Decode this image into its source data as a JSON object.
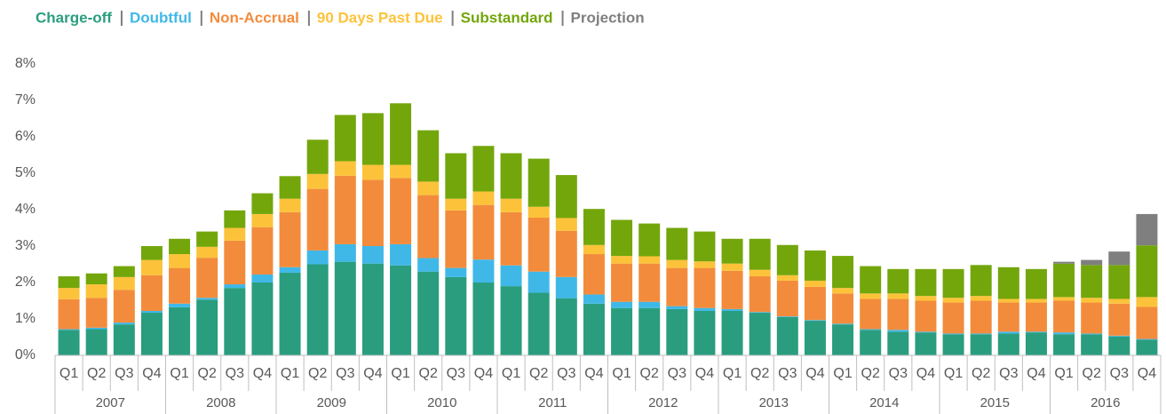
{
  "chart_data": {
    "type": "stacked_bar",
    "categories": [
      "Q1",
      "Q2",
      "Q3",
      "Q4",
      "Q1",
      "Q2",
      "Q3",
      "Q4",
      "Q1",
      "Q2",
      "Q3",
      "Q4",
      "Q1",
      "Q2",
      "Q3",
      "Q4",
      "Q1",
      "Q2",
      "Q3",
      "Q4",
      "Q1",
      "Q2",
      "Q3",
      "Q4",
      "Q1",
      "Q2",
      "Q3",
      "Q4",
      "Q1",
      "Q2",
      "Q3",
      "Q4",
      "Q1",
      "Q2",
      "Q3",
      "Q4",
      "Q1",
      "Q2",
      "Q3",
      "Q4"
    ],
    "groups": [
      "2007",
      "2008",
      "2009",
      "2010",
      "2011",
      "2012",
      "2013",
      "2014",
      "2015",
      "2016"
    ],
    "series": [
      {
        "name": "Charge-off",
        "color": "#2a9d7f",
        "values": [
          0.7,
          0.72,
          0.85,
          1.17,
          1.32,
          1.53,
          1.85,
          2.0,
          2.27,
          2.5,
          2.57,
          2.52,
          2.47,
          2.3,
          2.15,
          2.0,
          1.9,
          1.72,
          1.57,
          1.42,
          1.3,
          1.3,
          1.27,
          1.22,
          1.22,
          1.17,
          1.05,
          0.95,
          0.85,
          0.7,
          0.65,
          0.63,
          0.58,
          0.58,
          0.6,
          0.63,
          0.58,
          0.58,
          0.52,
          0.43
        ]
      },
      {
        "name": "Doubtful",
        "color": "#3fb8e8",
        "values": [
          0.02,
          0.04,
          0.05,
          0.05,
          0.1,
          0.05,
          0.1,
          0.22,
          0.15,
          0.38,
          0.48,
          0.48,
          0.58,
          0.37,
          0.25,
          0.63,
          0.57,
          0.58,
          0.58,
          0.25,
          0.17,
          0.17,
          0.08,
          0.08,
          0.05,
          0.02,
          0.02,
          0.02,
          0.02,
          0.02,
          0.05,
          0.02,
          0.02,
          0.02,
          0.05,
          0.02,
          0.05,
          0.02,
          0.02,
          0.02
        ]
      },
      {
        "name": "Non-Accrual",
        "color": "#f28c3c",
        "values": [
          0.82,
          0.82,
          0.9,
          0.98,
          0.98,
          1.1,
          1.2,
          1.3,
          1.51,
          1.69,
          1.88,
          1.82,
          1.82,
          1.73,
          1.58,
          1.5,
          1.46,
          1.48,
          1.27,
          1.11,
          1.05,
          1.05,
          1.05,
          1.1,
          1.05,
          0.98,
          0.98,
          0.91,
          0.83,
          0.83,
          0.85,
          0.85,
          0.85,
          0.9,
          0.8,
          0.8,
          0.87,
          0.85,
          0.88,
          0.88
        ]
      },
      {
        "name": "90 Days Past Due",
        "color": "#fcc33a",
        "values": [
          0.31,
          0.37,
          0.35,
          0.42,
          0.38,
          0.3,
          0.35,
          0.36,
          0.37,
          0.41,
          0.4,
          0.41,
          0.36,
          0.37,
          0.32,
          0.37,
          0.37,
          0.3,
          0.35,
          0.25,
          0.21,
          0.2,
          0.22,
          0.18,
          0.2,
          0.18,
          0.15,
          0.17,
          0.15,
          0.15,
          0.15,
          0.13,
          0.13,
          0.13,
          0.1,
          0.1,
          0.1,
          0.13,
          0.13,
          0.27
        ]
      },
      {
        "name": "Substandard",
        "color": "#73a60b",
        "values": [
          0.32,
          0.3,
          0.3,
          0.38,
          0.42,
          0.42,
          0.48,
          0.57,
          0.62,
          0.94,
          1.27,
          1.42,
          1.69,
          1.41,
          1.25,
          1.25,
          1.25,
          1.32,
          1.18,
          0.99,
          0.99,
          0.9,
          0.88,
          0.82,
          0.68,
          0.85,
          0.83,
          0.83,
          0.88,
          0.75,
          0.67,
          0.74,
          0.79,
          0.85,
          0.87,
          0.82,
          0.92,
          0.9,
          0.93,
          1.42
        ]
      },
      {
        "name": "Projection",
        "color": "#7f7f7f",
        "values": [
          0,
          0,
          0,
          0,
          0,
          0,
          0,
          0,
          0,
          0,
          0,
          0,
          0,
          0,
          0,
          0,
          0,
          0,
          0,
          0,
          0,
          0,
          0,
          0,
          0,
          0,
          0,
          0,
          0,
          0,
          0,
          0,
          0,
          0,
          0,
          0,
          0.05,
          0.14,
          0.37,
          0.86
        ]
      }
    ],
    "ylim": [
      0,
      8
    ],
    "yticks": [
      {
        "value": 0,
        "label": "0%"
      },
      {
        "value": 1,
        "label": "1%"
      },
      {
        "value": 2,
        "label": "2%"
      },
      {
        "value": 3,
        "label": "3%"
      },
      {
        "value": 4,
        "label": "4%"
      },
      {
        "value": 5,
        "label": "5%"
      },
      {
        "value": 6,
        "label": "6%"
      },
      {
        "value": 7,
        "label": "7%"
      },
      {
        "value": 8,
        "label": "8%"
      }
    ]
  }
}
